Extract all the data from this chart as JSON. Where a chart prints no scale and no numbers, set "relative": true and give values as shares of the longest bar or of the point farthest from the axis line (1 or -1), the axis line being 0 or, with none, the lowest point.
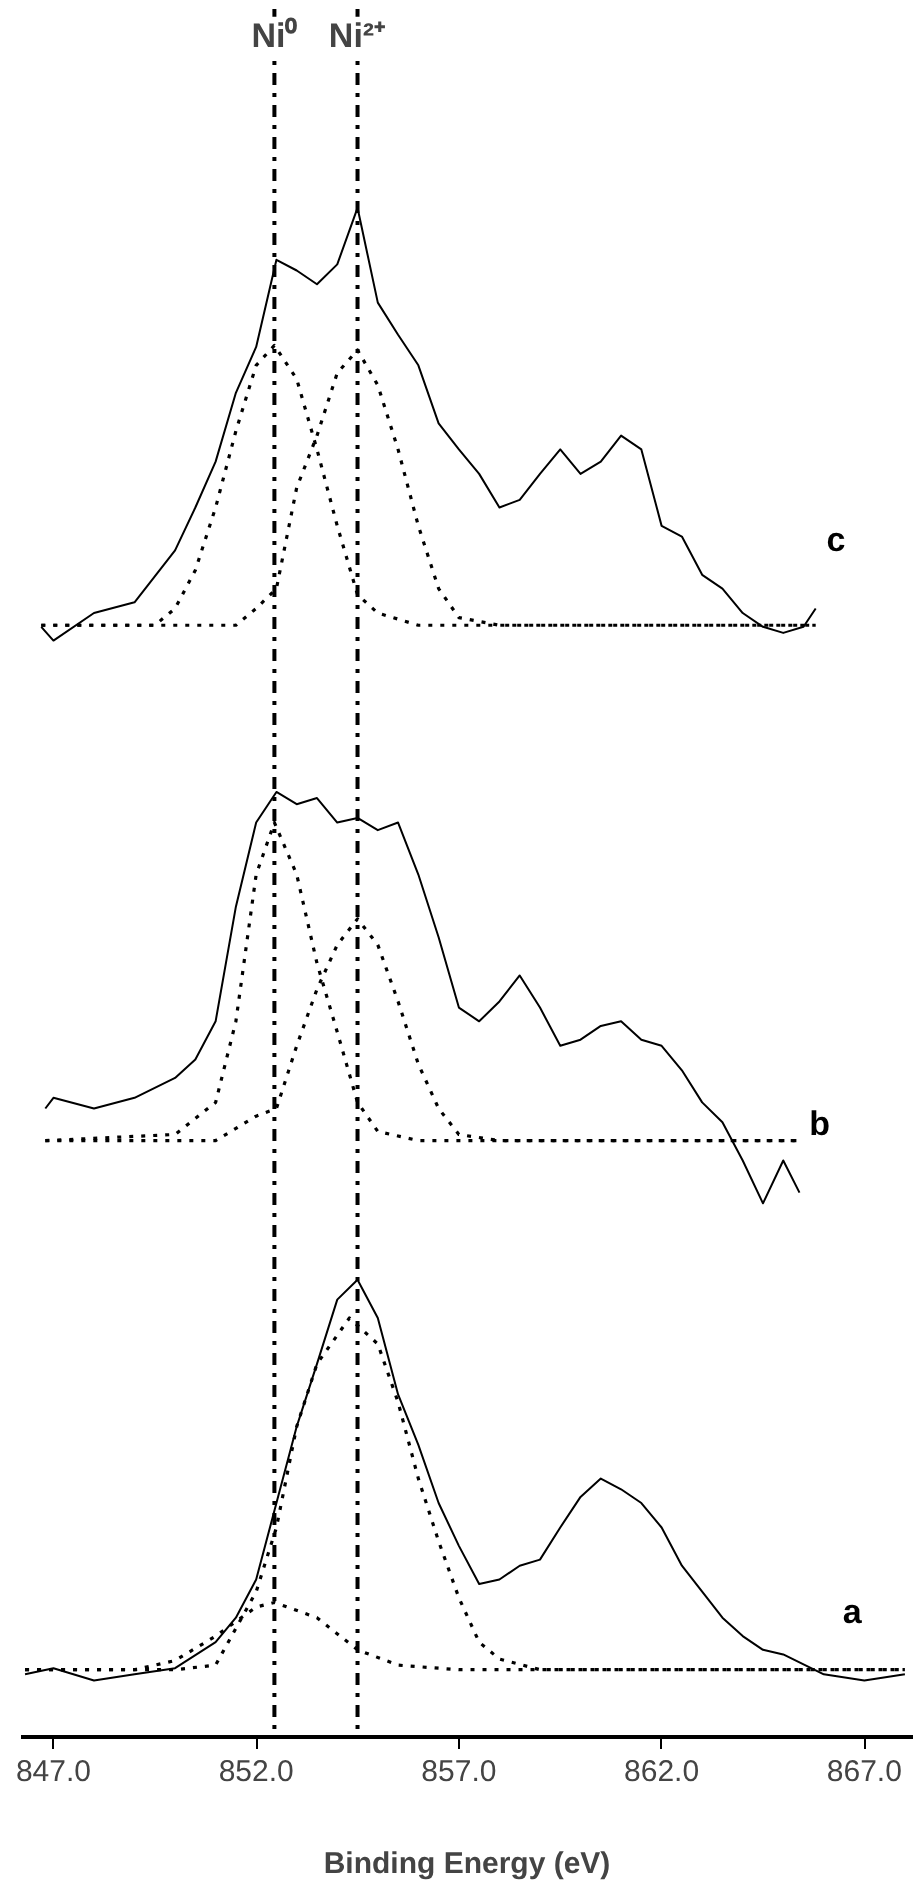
{
  "chart_data": {
    "type": "line",
    "relative": true,
    "xlabel": "Binding Energy (eV)",
    "xlim": [
      846.2,
      868.2
    ],
    "xticks": [
      {
        "value": 847,
        "label": "847.0"
      },
      {
        "value": 852,
        "label": "852.0"
      },
      {
        "value": 857,
        "label": "857.0"
      },
      {
        "value": 862,
        "label": "862.0"
      },
      {
        "value": 867,
        "label": "867.0"
      }
    ],
    "tick_labels": "x",
    "grid": false,
    "marker": "none",
    "ref_lines": [
      {
        "axis": "x",
        "value": 852.45,
        "label": "Ni⁰",
        "line_style": "dashed",
        "color": "#000000"
      },
      {
        "axis": "x",
        "value": 854.5,
        "label": "Ni²⁺",
        "line_style": "dashed",
        "color": "#000000"
      }
    ],
    "series": [
      {
        "name": "a",
        "color": "#000000",
        "line_style": "solid",
        "x": [
          846.3,
          847,
          848,
          849,
          850,
          851,
          851.5,
          852,
          852.5,
          853,
          853.5,
          854,
          854.5,
          855,
          855.5,
          856,
          856.5,
          857,
          857.5,
          858,
          858.5,
          859,
          859.5,
          860,
          860.5,
          861,
          861.5,
          862,
          862.5,
          863,
          863.5,
          864,
          864.5,
          865,
          866,
          867,
          868
        ],
        "values": [
          0.041,
          0.045,
          0.037,
          0.041,
          0.045,
          0.062,
          0.078,
          0.103,
          0.153,
          0.203,
          0.244,
          0.286,
          0.299,
          0.274,
          0.224,
          0.191,
          0.153,
          0.125,
          0.1,
          0.103,
          0.112,
          0.116,
          0.137,
          0.157,
          0.169,
          0.162,
          0.153,
          0.137,
          0.112,
          0.095,
          0.078,
          0.066,
          0.057,
          0.054,
          0.041,
          0.037,
          0.041
        ]
      },
      {
        "color": "#000000",
        "line_style": "dotted",
        "x": [
          846.3,
          849,
          850,
          851,
          852,
          852.45,
          853.5,
          854.5,
          855.5,
          857,
          868
        ],
        "values": [
          0.044,
          0.044,
          0.05,
          0.066,
          0.085,
          0.088,
          0.078,
          0.057,
          0.047,
          0.044,
          0.044
        ]
      },
      {
        "color": "#000000",
        "line_style": "dotted",
        "x": [
          846.3,
          850,
          851,
          852,
          852.5,
          853,
          853.5,
          854.3,
          855,
          855.5,
          856,
          856.5,
          857,
          857.5,
          858,
          859,
          868
        ],
        "values": [
          0.044,
          0.044,
          0.047,
          0.095,
          0.137,
          0.203,
          0.244,
          0.274,
          0.257,
          0.219,
          0.169,
          0.128,
          0.091,
          0.062,
          0.051,
          0.044,
          0.044
        ]
      },
      {
        "name": "b",
        "color": "#000000",
        "line_style": "solid",
        "x": [
          846.8,
          847,
          848,
          849,
          850,
          850.5,
          851,
          851.5,
          852,
          852.5,
          853,
          853.5,
          854,
          854.5,
          855,
          855.5,
          856,
          856.5,
          857,
          857.5,
          858,
          858.5,
          859,
          859.5,
          860,
          860.5,
          861,
          861.5,
          862,
          862.5,
          863,
          863.5,
          864,
          864.5,
          865,
          865.4
        ],
        "values": [
          0.411,
          0.418,
          0.411,
          0.418,
          0.431,
          0.443,
          0.468,
          0.543,
          0.598,
          0.618,
          0.61,
          0.614,
          0.598,
          0.601,
          0.593,
          0.598,
          0.564,
          0.523,
          0.477,
          0.468,
          0.481,
          0.498,
          0.477,
          0.452,
          0.456,
          0.465,
          0.468,
          0.456,
          0.452,
          0.436,
          0.415,
          0.402,
          0.377,
          0.349,
          0.377,
          0.356
        ]
      },
      {
        "color": "#000000",
        "line_style": "dotted",
        "x": [
          846.8,
          850,
          851,
          851.5,
          852,
          852.45,
          853,
          853.5,
          854,
          854.5,
          855,
          856,
          865.4
        ],
        "values": [
          0.39,
          0.394,
          0.415,
          0.468,
          0.564,
          0.598,
          0.564,
          0.506,
          0.461,
          0.415,
          0.396,
          0.39,
          0.39
        ]
      },
      {
        "color": "#000000",
        "line_style": "dotted",
        "x": [
          846.8,
          851,
          852,
          852.5,
          853,
          853.5,
          854,
          854.5,
          855,
          855.5,
          856,
          856.5,
          857,
          858,
          865.4
        ],
        "values": [
          0.39,
          0.39,
          0.406,
          0.411,
          0.452,
          0.489,
          0.518,
          0.535,
          0.518,
          0.481,
          0.44,
          0.411,
          0.394,
          0.39,
          0.39
        ]
      },
      {
        "name": "c",
        "color": "#000000",
        "line_style": "solid",
        "x": [
          846.7,
          847,
          848,
          849,
          850,
          850.5,
          851,
          851.5,
          852,
          852.5,
          853,
          853.5,
          854,
          854.5,
          855,
          855.5,
          856,
          856.5,
          857,
          857.5,
          858,
          858.5,
          859,
          859.5,
          860,
          860.5,
          861,
          861.5,
          862,
          862.5,
          863,
          863.5,
          864,
          864.5,
          865,
          865.5,
          865.8
        ],
        "values": [
          0.726,
          0.717,
          0.735,
          0.742,
          0.776,
          0.804,
          0.834,
          0.879,
          0.909,
          0.966,
          0.959,
          0.95,
          0.963,
          1.0,
          0.938,
          0.917,
          0.897,
          0.859,
          0.842,
          0.826,
          0.804,
          0.809,
          0.826,
          0.842,
          0.826,
          0.834,
          0.851,
          0.842,
          0.792,
          0.785,
          0.76,
          0.751,
          0.735,
          0.726,
          0.722,
          0.726,
          0.738
        ]
      },
      {
        "color": "#000000",
        "line_style": "dotted",
        "x": [
          846.7,
          849.5,
          850,
          850.5,
          851,
          851.5,
          852,
          852.45,
          853,
          853.5,
          854,
          854.5,
          855,
          856,
          865.8
        ],
        "values": [
          0.727,
          0.727,
          0.738,
          0.763,
          0.804,
          0.854,
          0.897,
          0.91,
          0.888,
          0.842,
          0.792,
          0.747,
          0.735,
          0.727,
          0.727
        ]
      },
      {
        "color": "#000000",
        "line_style": "dotted",
        "x": [
          846.7,
          851.5,
          852,
          852.5,
          853,
          853.5,
          854,
          854.5,
          855,
          855.5,
          856,
          856.5,
          857,
          858,
          865.8
        ],
        "values": [
          0.727,
          0.727,
          0.738,
          0.751,
          0.817,
          0.851,
          0.892,
          0.907,
          0.884,
          0.842,
          0.792,
          0.751,
          0.732,
          0.727,
          0.727
        ]
      }
    ]
  }
}
